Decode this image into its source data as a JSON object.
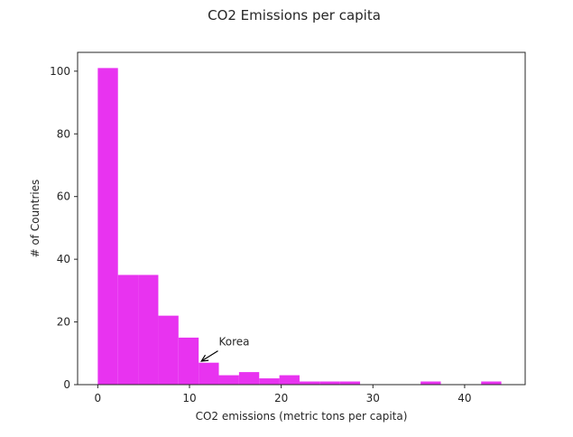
{
  "chart_data": {
    "type": "bar",
    "title": "CO2 Emissions per capita",
    "xlabel": "CO2 emissions (metric tons per capita)",
    "ylabel": "# of Countries",
    "xlim": [
      -2.2,
      46.6
    ],
    "ylim": [
      0,
      106
    ],
    "xticks": [
      0,
      10,
      20,
      30,
      40
    ],
    "yticks": [
      0,
      20,
      40,
      60,
      80,
      100
    ],
    "bin_edges": [
      0,
      2.2,
      4.4,
      6.6,
      8.8,
      11.0,
      13.2,
      15.4,
      17.6,
      19.8,
      22.0,
      24.2,
      26.4,
      28.6,
      30.8,
      33.0,
      35.2,
      37.4,
      39.6,
      41.8,
      44.0
    ],
    "counts": [
      101,
      35,
      35,
      22,
      15,
      7,
      3,
      4,
      2,
      3,
      1,
      1,
      1,
      0,
      0,
      0,
      1,
      0,
      0,
      1
    ],
    "bar_color": "#e833f0",
    "grid": false,
    "annotation": {
      "text": "Korea",
      "point": [
        11.3,
        7.5
      ],
      "text_position": [
        13.2,
        12.5
      ]
    }
  }
}
